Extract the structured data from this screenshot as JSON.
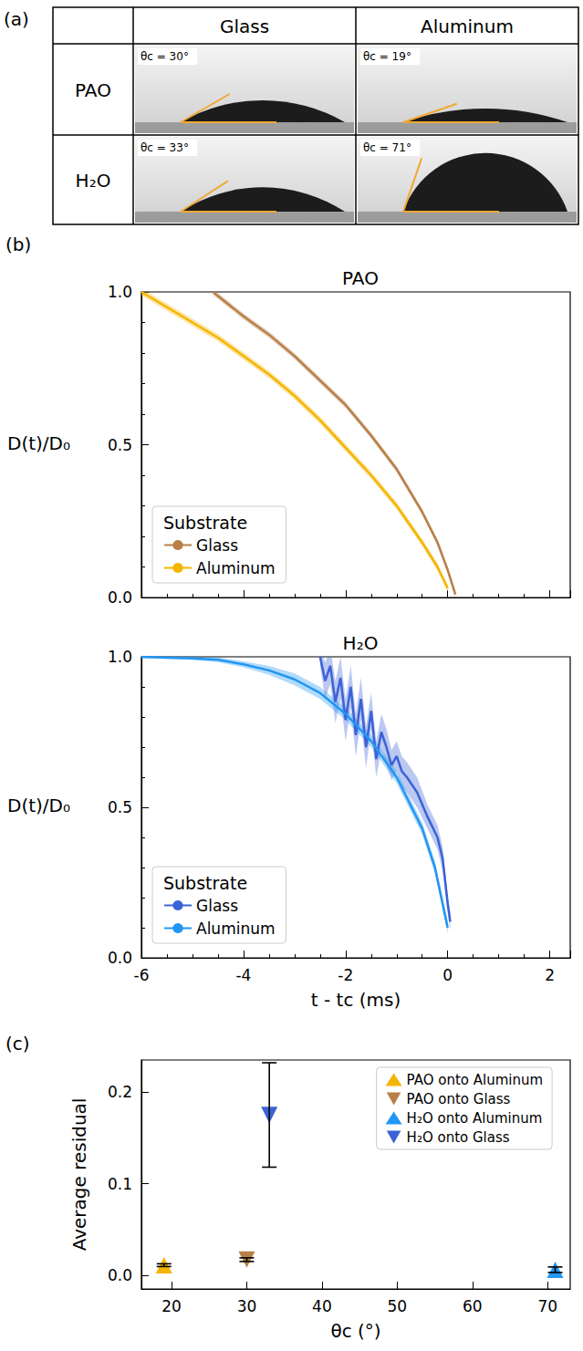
{
  "table": {
    "panel_label": "(a)",
    "columns": [
      "Glass",
      "Aluminum"
    ],
    "rows": [
      {
        "label": "PAO",
        "cells": [
          {
            "label": "θc = 30°",
            "contact_angle": 30
          },
          {
            "label": "θc = 19°",
            "contact_angle": 19
          }
        ]
      },
      {
        "label": "H₂O",
        "cells": [
          {
            "label": "θc = 33°",
            "contact_angle": 33
          },
          {
            "label": "θc = 71°",
            "contact_angle": 71
          }
        ]
      }
    ]
  },
  "chart_data": [
    {
      "type": "line",
      "panel_label": "(b)",
      "title": "PAO",
      "y_label": "D(t)/D₀",
      "xlim": [
        -6,
        2.4
      ],
      "xticks": [
        -6,
        -4,
        -2,
        0,
        2
      ],
      "ylim": [
        0,
        1
      ],
      "yticks": [
        {
          "value": 0,
          "label": "0.0"
        },
        {
          "value": 0.5,
          "label": "0.5"
        },
        {
          "value": 1,
          "label": "1.0"
        }
      ],
      "tick_labels": "y",
      "grid": false,
      "legend": "lower left",
      "legend_title": "Substrate",
      "series": [
        {
          "name": "Glass",
          "color": "#b87f48",
          "x": [
            -4.6,
            -4,
            -3.5,
            -3,
            -2.5,
            -2,
            -1.5,
            -1,
            -0.5,
            -0.2,
            0,
            0.15
          ],
          "values": [
            1.0,
            0.92,
            0.86,
            0.79,
            0.71,
            0.63,
            0.53,
            0.42,
            0.28,
            0.18,
            0.09,
            0.01
          ],
          "error": [
            0.01,
            0.01,
            0.01,
            0.01,
            0.01,
            0.01,
            0.01,
            0.01,
            0.01,
            0.01,
            0.01,
            0.01
          ]
        },
        {
          "name": "Aluminum",
          "color": "#f5b400",
          "x": [
            -6,
            -5.5,
            -5,
            -4.5,
            -4,
            -3.5,
            -3,
            -2.5,
            -2,
            -1.5,
            -1,
            -0.5,
            -0.2,
            0
          ],
          "values": [
            1.0,
            0.95,
            0.9,
            0.85,
            0.79,
            0.73,
            0.66,
            0.58,
            0.49,
            0.4,
            0.3,
            0.18,
            0.1,
            0.03
          ],
          "error": [
            0.012,
            0.012,
            0.012,
            0.012,
            0.012,
            0.012,
            0.012,
            0.012,
            0.012,
            0.012,
            0.012,
            0.012,
            0.012,
            0.012
          ]
        }
      ]
    },
    {
      "type": "line",
      "title": "H₂O",
      "y_label": "D(t)/D₀",
      "x_label": "t - tc (ms)",
      "xlim": [
        -6,
        2.4
      ],
      "xticks": [
        -6,
        -4,
        -2,
        0,
        2
      ],
      "ylim": [
        0,
        1
      ],
      "yticks": [
        {
          "value": 0,
          "label": "0.0"
        },
        {
          "value": 0.5,
          "label": "0.5"
        },
        {
          "value": 1,
          "label": "1.0"
        }
      ],
      "grid": false,
      "legend": "lower left",
      "legend_title": "Substrate",
      "series": [
        {
          "name": "Glass",
          "color": "#3b62d6",
          "x": [
            -2.5,
            -2.4,
            -2.3,
            -2.2,
            -2.1,
            -2.0,
            -1.9,
            -1.8,
            -1.7,
            -1.6,
            -1.5,
            -1.4,
            -1.3,
            -1.2,
            -1.1,
            -1.0,
            -0.9,
            -0.8,
            -0.6,
            -0.4,
            -0.2,
            -0.1,
            0,
            0.05
          ],
          "values": [
            1.0,
            0.92,
            0.97,
            0.85,
            0.93,
            0.79,
            0.9,
            0.74,
            0.86,
            0.7,
            0.82,
            0.66,
            0.75,
            0.7,
            0.64,
            0.67,
            0.62,
            0.6,
            0.55,
            0.47,
            0.4,
            0.33,
            0.18,
            0.12
          ],
          "error": [
            0.03,
            0.06,
            0.06,
            0.07,
            0.07,
            0.07,
            0.07,
            0.07,
            0.07,
            0.07,
            0.06,
            0.06,
            0.06,
            0.06,
            0.05,
            0.05,
            0.05,
            0.05,
            0.05,
            0.04,
            0.04,
            0.04,
            0.03,
            0.03
          ]
        },
        {
          "name": "Aluminum",
          "color": "#2196f3",
          "x": [
            -6,
            -5,
            -4.5,
            -4,
            -3.5,
            -3,
            -2.5,
            -2,
            -1.5,
            -1,
            -0.5,
            -0.25,
            0
          ],
          "values": [
            1.0,
            0.995,
            0.99,
            0.975,
            0.955,
            0.925,
            0.88,
            0.81,
            0.72,
            0.6,
            0.43,
            0.3,
            0.1
          ],
          "error": [
            0.005,
            0.005,
            0.008,
            0.01,
            0.015,
            0.02,
            0.02,
            0.02,
            0.02,
            0.02,
            0.02,
            0.02,
            0.02
          ]
        }
      ]
    },
    {
      "type": "scatter",
      "panel_label": "(c)",
      "x_label": "θc (°)",
      "y_label": "Average residual",
      "xlim": [
        16,
        73
      ],
      "xticks": [
        20,
        30,
        40,
        50,
        60,
        70
      ],
      "ylim": [
        -0.015,
        0.235
      ],
      "yticks": [
        {
          "value": 0,
          "label": "0.0"
        },
        {
          "value": 0.1,
          "label": "0.1"
        },
        {
          "value": 0.2,
          "label": "0.2"
        }
      ],
      "grid": false,
      "legend": "upper right",
      "series": [
        {
          "name": "PAO onto Aluminum",
          "color": "#f5b400",
          "marker": "triangle-up",
          "x": [
            19
          ],
          "values": [
            0.011
          ],
          "error": [
            0.0015
          ]
        },
        {
          "name": "PAO onto Glass",
          "color": "#b87f48",
          "marker": "triangle-down",
          "x": [
            30
          ],
          "values": [
            0.017
          ],
          "error": [
            0.002
          ]
        },
        {
          "name": "H₂O onto Aluminum",
          "color": "#2196f3",
          "marker": "triangle-up",
          "x": [
            71
          ],
          "values": [
            0.006
          ],
          "error": [
            0.003
          ]
        },
        {
          "name": "H₂O onto Glass",
          "color": "#3b62d6",
          "marker": "triangle-down",
          "x": [
            33
          ],
          "values": [
            0.175
          ],
          "error": [
            0.057
          ]
        }
      ]
    }
  ]
}
